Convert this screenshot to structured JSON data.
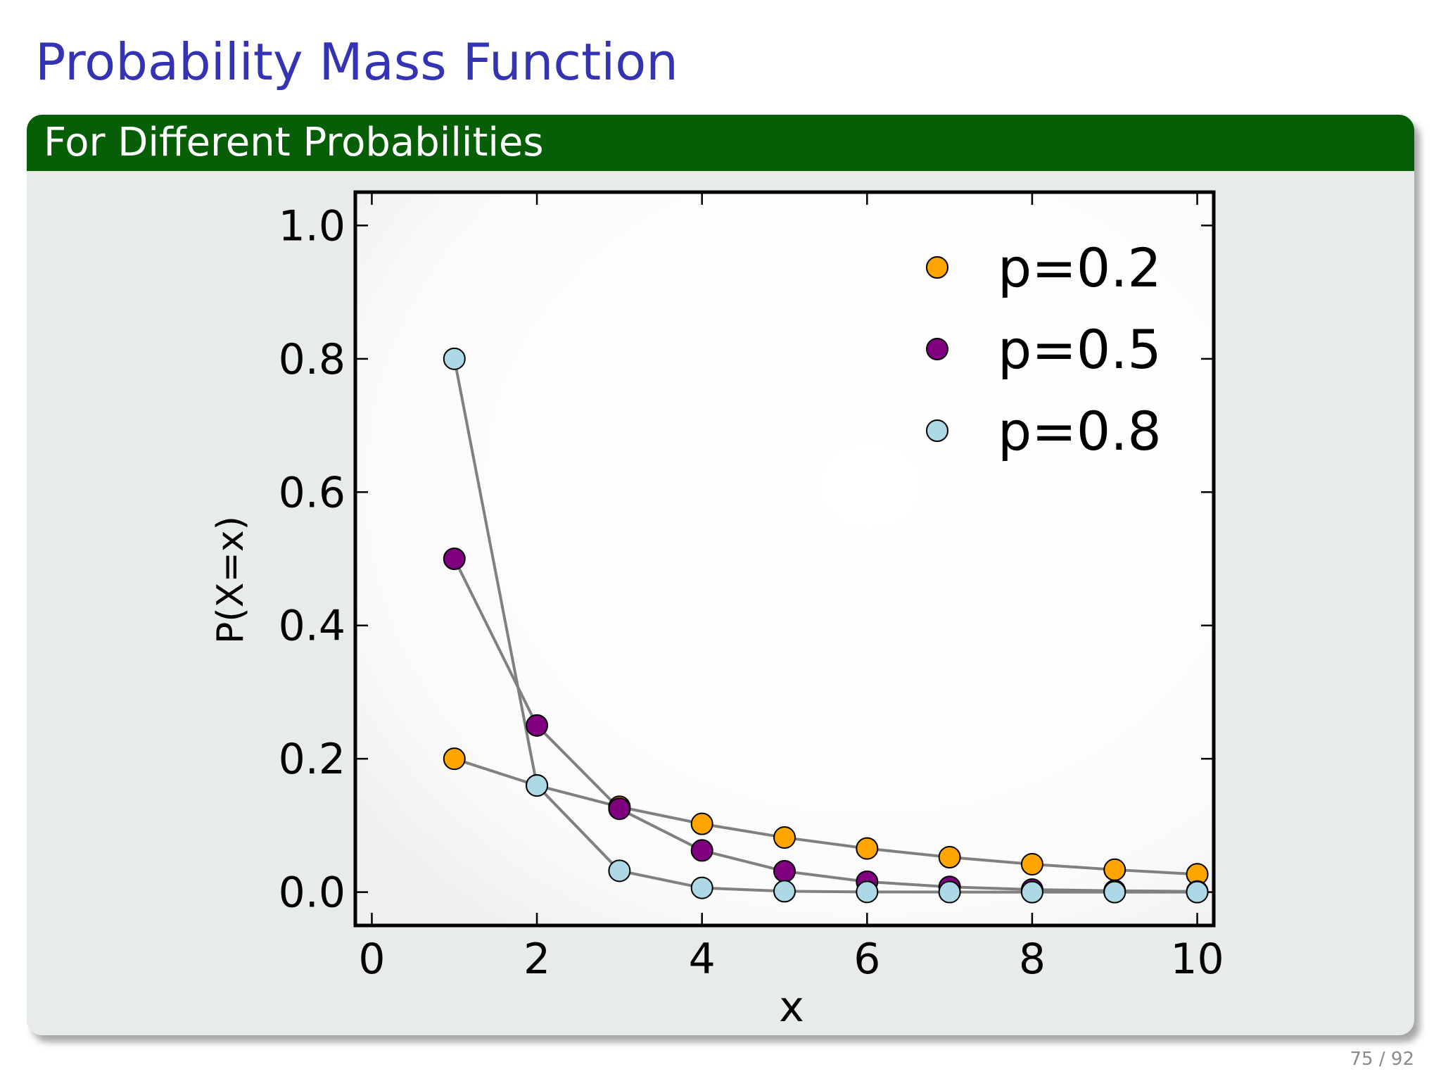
{
  "slide": {
    "title": "Probability Mass Function",
    "block_title": "For Different Probabilities",
    "page_current": "75",
    "page_sep": " / ",
    "page_total": "92"
  },
  "chart_data": {
    "type": "scatter",
    "xlabel": "x",
    "ylabel": "P(X=x)",
    "xlim": [
      -0.2,
      10.2
    ],
    "ylim": [
      -0.05,
      1.05
    ],
    "xticks": [
      0,
      2,
      4,
      6,
      8,
      10
    ],
    "xtick_labels": [
      "0",
      "2",
      "4",
      "6",
      "8",
      "10"
    ],
    "yticks": [
      0.0,
      0.2,
      0.4,
      0.6,
      0.8,
      1.0
    ],
    "ytick_labels": [
      "0.0",
      "0.2",
      "0.4",
      "0.6",
      "0.8",
      "1.0"
    ],
    "grid": false,
    "legend_position": "top-right",
    "x": [
      1,
      2,
      3,
      4,
      5,
      6,
      7,
      8,
      9,
      10
    ],
    "series": [
      {
        "name": "p=0.2",
        "color": "#ffa500",
        "values": [
          0.2,
          0.16,
          0.128,
          0.1024,
          0.0819,
          0.0655,
          0.0524,
          0.0419,
          0.0336,
          0.0268
        ]
      },
      {
        "name": "p=0.5",
        "color": "#800080",
        "values": [
          0.5,
          0.25,
          0.125,
          0.0625,
          0.0313,
          0.0156,
          0.0078,
          0.0039,
          0.002,
          0.001
        ]
      },
      {
        "name": "p=0.8",
        "color": "#add8e6",
        "values": [
          0.8,
          0.16,
          0.032,
          0.0064,
          0.0013,
          0.0003,
          0.0001,
          0.0,
          0.0,
          0.0
        ]
      }
    ],
    "line_color": "#808080",
    "marker_edge_color": "#000000"
  }
}
